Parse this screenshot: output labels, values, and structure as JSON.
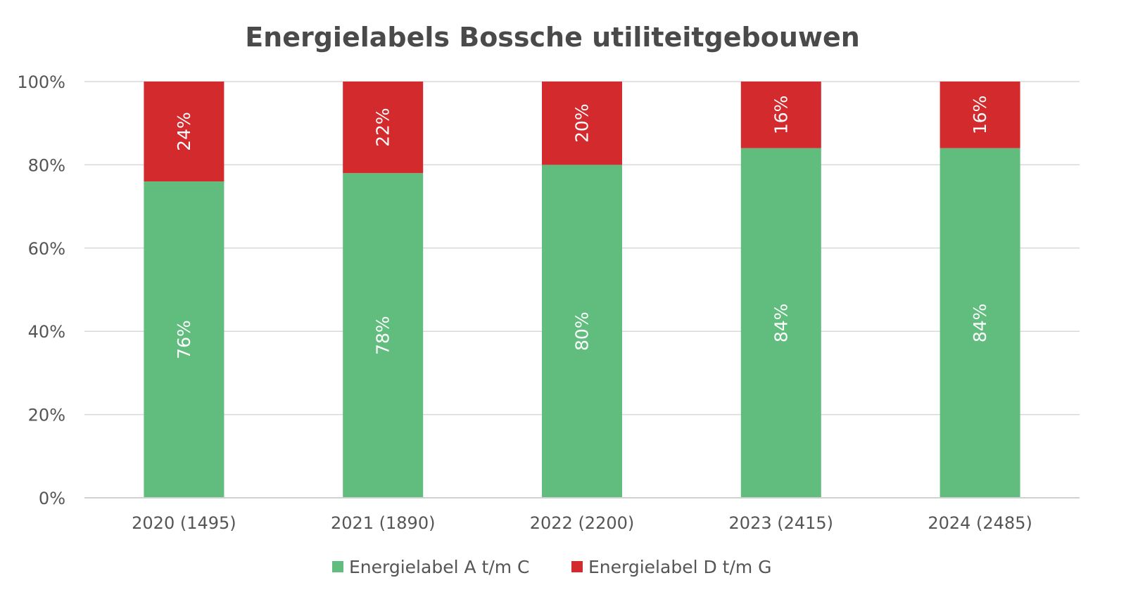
{
  "chart_data": {
    "type": "bar",
    "stacked": true,
    "title": "Energielabels Bossche utiliteitgebouwen",
    "xlabel": "",
    "ylabel": "",
    "categories": [
      "2020 (1495)",
      "2021 (1890)",
      "2022 (2200)",
      "2023 (2415)",
      "2024 (2485)"
    ],
    "yticks": [
      "0%",
      "20%",
      "40%",
      "60%",
      "80%",
      "100%"
    ],
    "ylim": [
      0,
      100
    ],
    "grid": true,
    "legend_position": "bottom",
    "series": [
      {
        "name": "Energielabel A t/m C",
        "color": "#61bd7e",
        "values": [
          76,
          78,
          80,
          84,
          84
        ],
        "labels": [
          "76%",
          "78%",
          "80%",
          "84%",
          "84%"
        ]
      },
      {
        "name": "Energielabel D t/m G",
        "color": "#d32a2e",
        "values": [
          24,
          22,
          20,
          16,
          16
        ],
        "labels": [
          "24%",
          "22%",
          "20%",
          "16%",
          "16%"
        ]
      }
    ]
  }
}
